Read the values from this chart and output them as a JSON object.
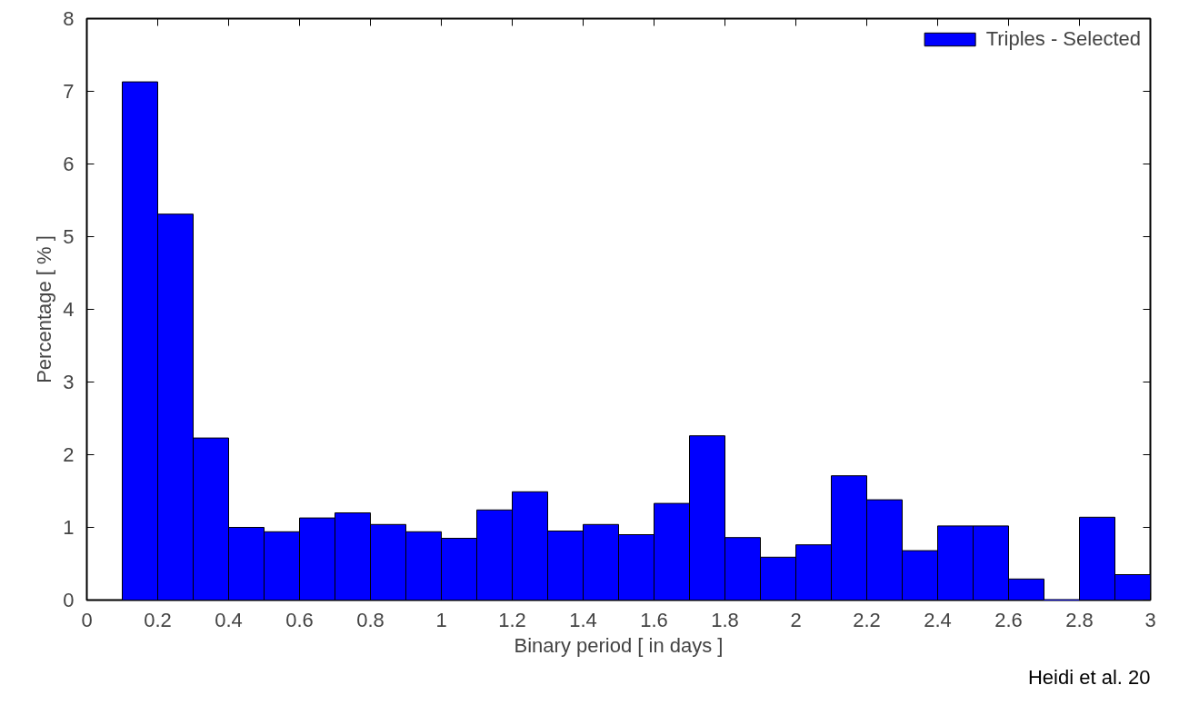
{
  "chart_data": {
    "type": "histogram",
    "xlabel": "Binary period [ in days ]",
    "ylabel": "Percentage [ % ]",
    "bins": [
      0.1,
      0.2,
      0.3,
      0.4,
      0.5,
      0.6,
      0.7,
      0.8,
      0.9,
      1.0,
      1.1,
      1.2,
      1.3,
      1.4,
      1.5,
      1.6,
      1.7,
      1.8,
      1.9,
      2.0,
      2.1,
      2.2,
      2.3,
      2.4,
      2.5,
      2.6,
      2.7,
      2.8,
      2.9,
      3.0
    ],
    "series": [
      {
        "name": "Triples - Selected",
        "color": "#0000ff",
        "values": [
          7.13,
          5.31,
          2.23,
          1.0,
          0.94,
          1.13,
          1.2,
          1.04,
          0.94,
          0.85,
          1.24,
          1.49,
          0.95,
          1.04,
          0.9,
          1.33,
          2.26,
          0.86,
          0.59,
          0.76,
          1.71,
          1.38,
          0.68,
          1.02,
          1.02,
          0.29,
          0,
          1.14,
          0.35
        ]
      }
    ],
    "xlim": [
      0,
      3
    ],
    "ylim": [
      0,
      8
    ],
    "xticks": [
      0,
      0.2,
      0.4,
      0.6,
      0.8,
      1,
      1.2,
      1.4,
      1.6,
      1.8,
      2,
      2.2,
      2.4,
      2.6,
      2.8,
      3
    ],
    "yticks": [
      0,
      1,
      2,
      3,
      4,
      5,
      6,
      7,
      8
    ],
    "grid": false,
    "legend": "top right",
    "annotations": [
      "Heidi et al. 20"
    ]
  }
}
